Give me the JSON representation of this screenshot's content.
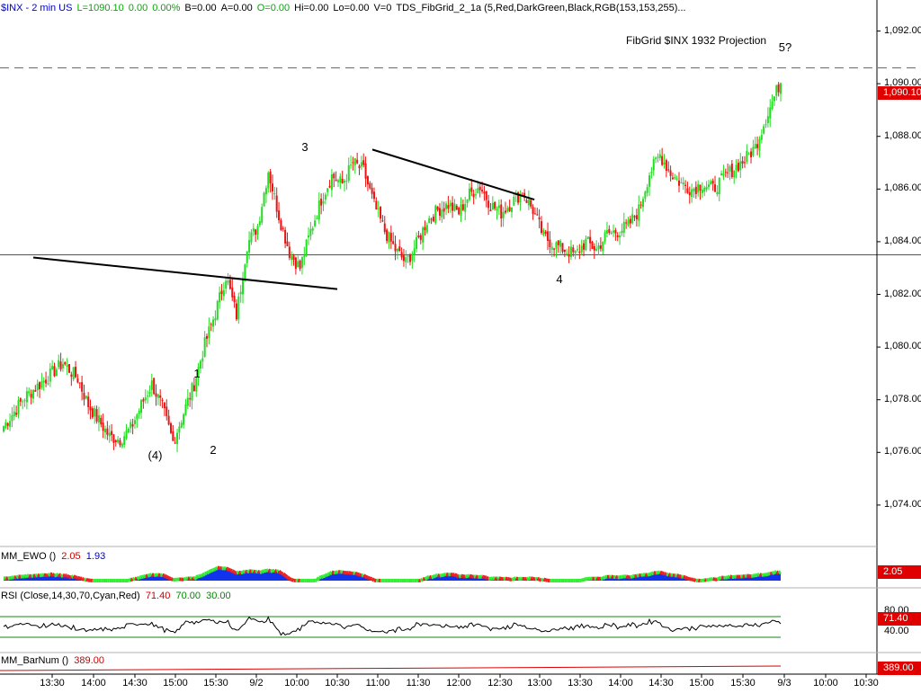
{
  "header": {
    "symbol": "$INX - 2 min  US",
    "last": "L=1090.10",
    "change": "0.00",
    "change_pct": "0.00%",
    "bid": "B=0.00",
    "ask": "A=0.00",
    "open": "O=0.00",
    "high": "Hi=0.00",
    "low": "Lo=0.00",
    "volume": "V=0",
    "study": "TDS_FibGrid_2_1a (5,Red,DarkGreen,Black,RGB(153,153,255)...",
    "colors": {
      "symbol": "#0000cc",
      "green": "#00aa00",
      "red": "#cc0000",
      "black": "#000000"
    }
  },
  "annotation": "FibGrid $INX 1932 Projection",
  "wave_labels": [
    {
      "text": "(4)",
      "x": "14:45",
      "price": 1075.9
    },
    {
      "text": "1",
      "x": "15:16",
      "price": 1079.0
    },
    {
      "text": "2",
      "x": "15:28",
      "price": 1076.1
    },
    {
      "text": "3",
      "x": "10:06",
      "price": 1087.6
    },
    {
      "text": "4",
      "x": "13:16",
      "price": 1082.6
    },
    {
      "text": "5?",
      "x": "15:40",
      "price": 1091.4
    }
  ],
  "last_price_box": "1,090.10",
  "ewo": {
    "label": "MM_EWO ()",
    "v1": "2.05",
    "v2": "1.93",
    "box": "2.05"
  },
  "rsi": {
    "label": "RSI (Close,14,30,70,Cyan,Red)",
    "v1": "71.40",
    "v2": "70.00",
    "v3": "30.00",
    "box": "71.40",
    "tick_80": "80.00",
    "tick_40": "40.00"
  },
  "barnum": {
    "label": "MM_BarNum ()",
    "v1": "389.00",
    "box": "389.00"
  },
  "chart_data": {
    "type": "candlestick",
    "y_ticks": [
      "1,092.00",
      "1,090.00",
      "1,088.00",
      "1,086.00",
      "1,084.00",
      "1,082.00",
      "1,080.00",
      "1,078.00",
      "1,076.00",
      "1,074.00"
    ],
    "x_ticks": [
      "13:30",
      "14:00",
      "14:30",
      "15:00",
      "15:30",
      "9/2",
      "10:00",
      "10:30",
      "11:00",
      "11:30",
      "12:00",
      "12:30",
      "13:00",
      "13:30",
      "14:00",
      "14:30",
      "15:00",
      "15:30",
      "9/3",
      "10:00",
      "10:30"
    ],
    "ylim": [
      1072.7,
      1092.7
    ],
    "horizontal_lines": [
      {
        "price": 1090.6,
        "style": "dashed",
        "color": "#2e7d9a"
      },
      {
        "price": 1083.5,
        "style": "solid",
        "color": "#1b7a1b"
      }
    ],
    "triangle_lines": [
      {
        "from": [
          "10:56",
          1087.5
        ],
        "to": [
          "12:56",
          1085.6
        ]
      },
      {
        "from": [
          "10:30",
          1082.2
        ],
        "to": [
          "13:16",
          1083.4
        ]
      }
    ],
    "anchors": [
      [
        0,
        1077.0
      ],
      [
        10,
        1078.1
      ],
      [
        20,
        1078.8
      ],
      [
        28,
        1079.4
      ],
      [
        35,
        1078.8
      ],
      [
        40,
        1077.8
      ],
      [
        45,
        1077.2
      ],
      [
        50,
        1076.6
      ],
      [
        55,
        1076.5
      ],
      [
        60,
        1076.9
      ],
      [
        65,
        1077.8
      ],
      [
        70,
        1078.6
      ],
      [
        75,
        1077.7
      ],
      [
        80,
        1076.4
      ],
      [
        90,
        1078.6
      ],
      [
        95,
        1080.1
      ],
      [
        100,
        1081.3
      ],
      [
        105,
        1082.7
      ],
      [
        110,
        1081.2
      ],
      [
        115,
        1083.9
      ],
      [
        120,
        1084.6
      ],
      [
        125,
        1086.7
      ],
      [
        130,
        1085.0
      ],
      [
        135,
        1083.6
      ],
      [
        140,
        1083.0
      ],
      [
        145,
        1084.4
      ],
      [
        150,
        1085.6
      ],
      [
        155,
        1086.5
      ],
      [
        160,
        1086.2
      ],
      [
        165,
        1087.0
      ],
      [
        170,
        1086.7
      ],
      [
        175,
        1085.4
      ],
      [
        180,
        1084.4
      ],
      [
        185,
        1083.7
      ],
      [
        190,
        1083.2
      ],
      [
        195,
        1083.9
      ],
      [
        200,
        1084.8
      ],
      [
        205,
        1085.2
      ],
      [
        210,
        1085.4
      ],
      [
        215,
        1085.1
      ],
      [
        220,
        1085.8
      ],
      [
        225,
        1086.1
      ],
      [
        230,
        1085.4
      ],
      [
        235,
        1085.1
      ],
      [
        240,
        1085.5
      ],
      [
        245,
        1085.9
      ],
      [
        250,
        1085.2
      ],
      [
        255,
        1084.2
      ],
      [
        260,
        1083.9
      ],
      [
        265,
        1083.7
      ],
      [
        270,
        1083.5
      ],
      [
        275,
        1084.0
      ],
      [
        280,
        1083.7
      ],
      [
        285,
        1084.3
      ],
      [
        290,
        1084.4
      ],
      [
        295,
        1084.6
      ],
      [
        300,
        1085.2
      ],
      [
        305,
        1086.6
      ],
      [
        310,
        1087.3
      ],
      [
        315,
        1086.6
      ],
      [
        320,
        1086.2
      ],
      [
        325,
        1086.0
      ],
      [
        330,
        1086.2
      ],
      [
        335,
        1086.0
      ],
      [
        340,
        1086.4
      ],
      [
        345,
        1086.8
      ],
      [
        350,
        1087.1
      ],
      [
        355,
        1087.6
      ],
      [
        360,
        1088.7
      ],
      [
        365,
        1089.7
      ],
      [
        367,
        1090.1
      ]
    ]
  }
}
